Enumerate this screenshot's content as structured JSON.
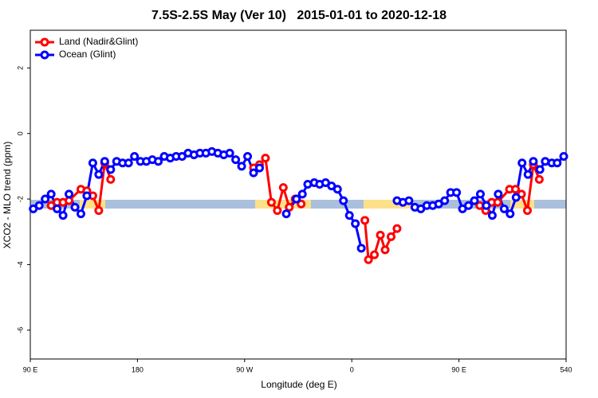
{
  "chart_data": {
    "type": "line",
    "title": "7.5S-2.5S May (Ver 10)   2015-01-01 to 2020-12-18",
    "x_label": "Longitude (deg E)",
    "y_label": "XCO2 - MLO trend (ppm)",
    "xlim": [
      90,
      540
    ],
    "ylim": [
      -6.88,
      3.15
    ],
    "xticks": [
      {
        "value": 90,
        "label": "90 E"
      },
      180,
      {
        "value": 270,
        "label": "90 W"
      },
      {
        "value": 360,
        "label": "0"
      },
      {
        "value": 450,
        "label": "90 E"
      },
      540
    ],
    "yticks": [
      -6,
      -4,
      -2,
      0,
      2
    ],
    "legend": "top-left",
    "series": [
      {
        "name": "Land (Nadir&Glint)",
        "color": "#ff0000",
        "x": [
          107.5,
          112.5,
          117.5,
          122.5,
          132.5,
          137.5,
          142.5,
          147.5,
          152.5,
          157.5,
          200,
          277.5,
          282.5,
          287.5,
          292.5,
          297.5,
          302.5,
          307.5,
          312.5,
          317.5,
          340,
          371,
          374,
          379,
          384,
          388,
          393,
          398,
          430,
          467.5,
          472.5,
          477.5,
          482.5,
          492.5,
          497.5,
          502.5,
          507.5,
          512.5,
          517.5
        ],
        "values": [
          -2.2,
          -2.1,
          -2.1,
          -2.05,
          -1.7,
          -1.75,
          -1.9,
          -2.35,
          -0.9,
          -1.4,
          null,
          -1.05,
          -0.95,
          -0.75,
          -2.1,
          -2.35,
          -1.65,
          -2.25,
          -2.0,
          -2.15,
          null,
          -2.65,
          -3.85,
          -3.7,
          -3.1,
          -3.55,
          -3.15,
          -2.9,
          null,
          -2.2,
          -2.35,
          -2.1,
          -2.1,
          -1.7,
          -1.7,
          -1.85,
          -2.35,
          -0.95,
          -1.4
        ]
      },
      {
        "name": "Ocean (Glint)",
        "color": "#0000ff",
        "x": [
          92.5,
          97.5,
          102.5,
          107.5,
          112.5,
          117.5,
          122.5,
          127.5,
          132.5,
          137.5,
          142.5,
          147.5,
          152.5,
          157.5,
          162.5,
          167.5,
          172.5,
          177.5,
          182.5,
          187.5,
          192.5,
          197.5,
          202.5,
          207.5,
          212.5,
          217.5,
          222.5,
          227.5,
          232.5,
          237.5,
          242.5,
          247.5,
          252.5,
          257.5,
          262.5,
          267.5,
          272.5,
          277.5,
          282.5,
          295,
          305,
          313.5,
          318.5,
          323,
          328.5,
          333,
          338,
          343,
          348,
          353,
          358,
          363,
          368,
          385,
          398,
          403,
          408,
          413,
          418,
          423,
          428,
          433,
          438,
          443,
          448,
          453,
          458,
          463,
          468,
          473,
          478,
          483,
          488,
          493,
          498,
          503,
          508,
          512.5,
          518,
          522.5,
          528,
          532.5,
          538
        ],
        "values": [
          -2.3,
          -2.2,
          -2.0,
          -1.85,
          -2.3,
          -2.5,
          -1.85,
          -2.25,
          -2.45,
          -1.9,
          -0.9,
          -1.25,
          -0.85,
          -1.1,
          -0.85,
          -0.9,
          -0.9,
          -0.7,
          -0.85,
          -0.85,
          -0.8,
          -0.85,
          -0.7,
          -0.75,
          -0.7,
          -0.7,
          -0.6,
          -0.65,
          -0.6,
          -0.6,
          -0.55,
          -0.6,
          -0.65,
          -0.6,
          -0.8,
          -1.0,
          -0.7,
          -1.2,
          -1.05,
          null,
          -2.45,
          -2.0,
          -1.85,
          -1.55,
          -1.5,
          -1.55,
          -1.5,
          -1.6,
          -1.7,
          -2.05,
          -2.5,
          -2.75,
          -3.5,
          null,
          -2.05,
          -2.1,
          -2.05,
          -2.25,
          -2.3,
          -2.2,
          -2.2,
          -2.15,
          -2.05,
          -1.8,
          -1.8,
          -2.3,
          -2.2,
          -2.05,
          -1.85,
          -2.2,
          -2.5,
          -1.85,
          -2.3,
          -2.45,
          -1.95,
          -0.9,
          -1.25,
          -0.85,
          -1.1,
          -0.85,
          -0.9,
          -0.9,
          -0.7
        ]
      }
    ]
  }
}
